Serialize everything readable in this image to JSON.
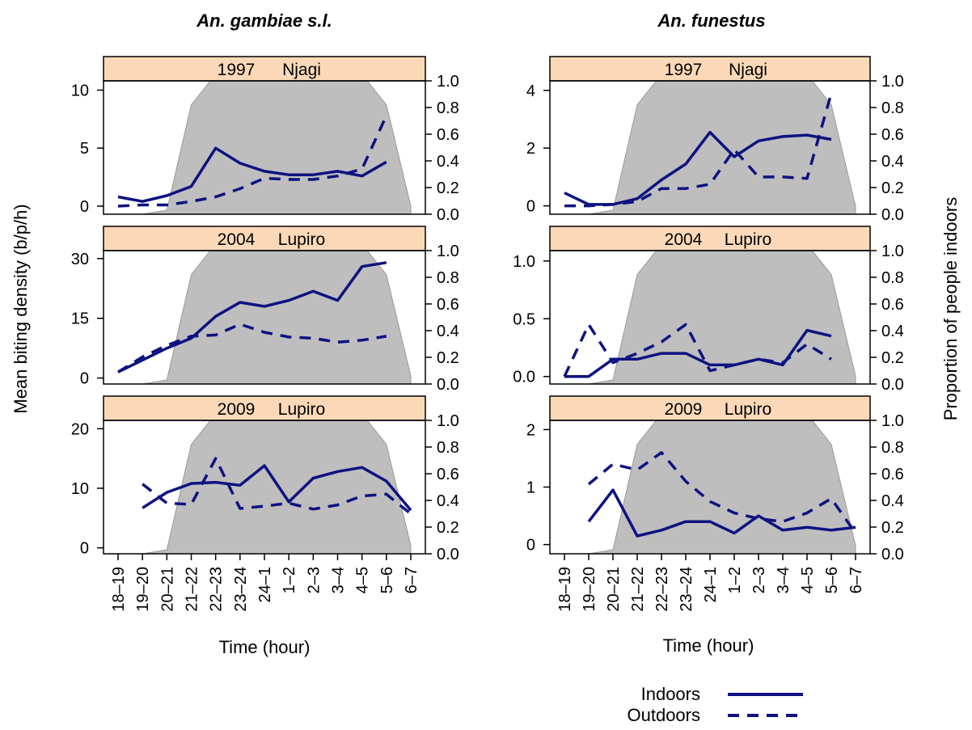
{
  "figure": {
    "left_title": "An. gambiae s.l.",
    "right_title": "An. funestus",
    "ylabel_left": "Mean biting density (b/p/h)",
    "ylabel_right": "Proportion of people indoors",
    "xlabel_left": "Time (hour)",
    "xlabel_right": "Time (hour)",
    "legend": {
      "indoors": "Indoors",
      "outdoors": "Outdoors"
    },
    "colors": {
      "series": "#0d1280",
      "shade": "#bebebe",
      "strip": "#fbd9b8"
    }
  },
  "chart_data": [
    {
      "type": "line",
      "panel": "An. gambiae s.l. 1997 Njagi",
      "strip": [
        "1997",
        "Njagi"
      ],
      "categories": [
        "18–19",
        "19–20",
        "20–21",
        "21–22",
        "22–23",
        "23–24",
        "24–1",
        "1–2",
        "2–3",
        "3–4",
        "4–5",
        "5–6",
        "6–7"
      ],
      "ylim": [
        -0.7,
        10.8
      ],
      "yticks": [
        "0",
        "5",
        "10"
      ],
      "y2ticks": [
        "0.0",
        "0.2",
        "0.4",
        "0.6",
        "0.8",
        "1.0"
      ],
      "y2lim": [
        0,
        1
      ],
      "shade": [
        0,
        0,
        0.03,
        0.82,
        1.05,
        1.1,
        1.1,
        1.1,
        1.1,
        1.1,
        1.05,
        0.82,
        0.06
      ],
      "series": [
        {
          "name": "Indoors",
          "values": [
            0.8,
            0.4,
            0.9,
            1.7,
            5.0,
            3.7,
            3.0,
            2.7,
            2.7,
            3.0,
            2.6,
            3.8,
            null
          ]
        },
        {
          "name": "Outdoors",
          "values": [
            0.0,
            0.1,
            0.1,
            0.4,
            0.8,
            1.5,
            2.4,
            2.3,
            2.3,
            2.6,
            3.2,
            7.8,
            null
          ]
        }
      ]
    },
    {
      "type": "line",
      "panel": "An. gambiae s.l. 2004 Lupiro",
      "strip": [
        "2004",
        "Lupiro"
      ],
      "categories": [
        "18–19",
        "19–20",
        "20–21",
        "21–22",
        "22–23",
        "23–24",
        "24–1",
        "1–2",
        "2–3",
        "3–4",
        "4–5",
        "5–6",
        "6–7"
      ],
      "ylim": [
        -1.5,
        32
      ],
      "yticks": [
        "0",
        "15",
        "30"
      ],
      "y2ticks": [
        "0.0",
        "0.2",
        "0.4",
        "0.6",
        "0.8",
        "1.0"
      ],
      "y2lim": [
        0,
        1
      ],
      "shade": [
        0,
        0,
        0.03,
        0.82,
        1.05,
        1.1,
        1.1,
        1.1,
        1.1,
        1.1,
        1.05,
        0.82,
        0.06
      ],
      "series": [
        {
          "name": "Indoors",
          "values": [
            1.5,
            4.5,
            7.5,
            10.0,
            15.5,
            19.0,
            18.0,
            19.5,
            21.8,
            19.5,
            28.0,
            29.0,
            null
          ]
        },
        {
          "name": "Outdoors",
          "values": [
            1.5,
            5.3,
            8.2,
            10.5,
            10.8,
            13.5,
            11.5,
            10.3,
            10.0,
            9.0,
            9.5,
            10.5,
            null
          ]
        }
      ]
    },
    {
      "type": "line",
      "panel": "An. gambiae s.l. 2009 Lupiro",
      "strip": [
        "2009",
        "Lupiro"
      ],
      "categories": [
        "18–19",
        "19–20",
        "20–21",
        "21–22",
        "22–23",
        "23–24",
        "24–1",
        "1–2",
        "2–3",
        "3–4",
        "4–5",
        "5–6",
        "6–7"
      ],
      "ylim": [
        -1.0,
        21.4
      ],
      "yticks": [
        "0",
        "10",
        "20"
      ],
      "y2ticks": [
        "0.0",
        "0.2",
        "0.4",
        "0.6",
        "0.8",
        "1.0"
      ],
      "y2lim": [
        0,
        1
      ],
      "shade": [
        0,
        0,
        0.03,
        0.82,
        1.05,
        1.1,
        1.1,
        1.1,
        1.1,
        1.1,
        1.05,
        0.82,
        0.06
      ],
      "series": [
        {
          "name": "Indoors",
          "values": [
            null,
            6.7,
            9.3,
            10.8,
            11.0,
            10.5,
            13.8,
            7.7,
            11.7,
            12.8,
            13.5,
            11.2,
            6.3
          ]
        },
        {
          "name": "Outdoors",
          "values": [
            null,
            10.7,
            7.5,
            7.3,
            15.0,
            6.6,
            7.0,
            7.5,
            6.5,
            7.2,
            8.7,
            9.0,
            5.7
          ]
        }
      ]
    },
    {
      "type": "line",
      "panel": "An. funestus 1997 Njagi",
      "strip": [
        "1997",
        "Njagi"
      ],
      "categories": [
        "18–19",
        "19–20",
        "20–21",
        "21–22",
        "22–23",
        "23–24",
        "24–1",
        "1–2",
        "2–3",
        "3–4",
        "4–5",
        "5–6",
        "6–7"
      ],
      "ylim": [
        -0.29,
        4.33
      ],
      "yticks": [
        "0",
        "2",
        "4"
      ],
      "y2ticks": [
        "0.0",
        "0.2",
        "0.4",
        "0.6",
        "0.8",
        "1.0"
      ],
      "y2lim": [
        0,
        1
      ],
      "shade": [
        0,
        0,
        0.03,
        0.82,
        1.05,
        1.1,
        1.1,
        1.1,
        1.1,
        1.1,
        1.05,
        0.82,
        0.06
      ],
      "series": [
        {
          "name": "Indoors",
          "values": [
            0.45,
            0.05,
            0.05,
            0.25,
            0.9,
            1.45,
            2.55,
            1.7,
            2.25,
            2.4,
            2.45,
            2.3,
            null
          ]
        },
        {
          "name": "Outdoors",
          "values": [
            0.0,
            0.0,
            0.05,
            0.15,
            0.6,
            0.6,
            0.75,
            1.95,
            1.0,
            1.0,
            0.95,
            3.9,
            null
          ]
        }
      ]
    },
    {
      "type": "line",
      "panel": "An. funestus 2004 Lupiro",
      "strip": [
        "2004",
        "Lupiro"
      ],
      "categories": [
        "18–19",
        "19–20",
        "20–21",
        "21–22",
        "22–23",
        "23–24",
        "24–1",
        "1–2",
        "2–3",
        "3–4",
        "4–5",
        "5–6",
        "6–7"
      ],
      "ylim": [
        -0.065,
        1.09
      ],
      "yticks": [
        "0.0",
        "0.5",
        "1.0"
      ],
      "y2ticks": [
        "0.0",
        "0.2",
        "0.4",
        "0.6",
        "0.8",
        "1.0"
      ],
      "y2lim": [
        0,
        1
      ],
      "shade": [
        0,
        0,
        0.03,
        0.82,
        1.05,
        1.1,
        1.1,
        1.1,
        1.1,
        1.1,
        1.05,
        0.82,
        0.06
      ],
      "series": [
        {
          "name": "Indoors",
          "values": [
            0.0,
            0.0,
            0.15,
            0.15,
            0.2,
            0.2,
            0.1,
            0.1,
            0.15,
            0.1,
            0.4,
            0.35,
            null
          ]
        },
        {
          "name": "Outdoors",
          "values": [
            0.0,
            0.45,
            0.12,
            0.2,
            0.3,
            0.45,
            0.05,
            0.1,
            0.15,
            0.12,
            0.28,
            0.15,
            null
          ]
        }
      ]
    },
    {
      "type": "line",
      "panel": "An. funestus 2009 Lupiro",
      "strip": [
        "2009",
        "Lupiro"
      ],
      "categories": [
        "18–19",
        "19–20",
        "20–21",
        "21–22",
        "22–23",
        "23–24",
        "24–1",
        "1–2",
        "2–3",
        "3–4",
        "4–5",
        "5–6",
        "6–7"
      ],
      "ylim": [
        -0.16,
        2.16
      ],
      "yticks": [
        "0",
        "1",
        "2"
      ],
      "y2ticks": [
        "0.0",
        "0.2",
        "0.4",
        "0.6",
        "0.8",
        "1.0"
      ],
      "y2lim": [
        0,
        1
      ],
      "shade": [
        0,
        0,
        0.03,
        0.82,
        1.05,
        1.1,
        1.1,
        1.1,
        1.1,
        1.1,
        1.05,
        0.82,
        0.06
      ],
      "series": [
        {
          "name": "Indoors",
          "values": [
            null,
            0.4,
            0.95,
            0.15,
            0.25,
            0.4,
            0.4,
            0.2,
            0.5,
            0.25,
            0.3,
            0.25,
            0.3
          ]
        },
        {
          "name": "Outdoors",
          "values": [
            null,
            1.05,
            1.4,
            1.3,
            1.6,
            1.1,
            0.75,
            0.55,
            0.45,
            0.4,
            0.55,
            0.8,
            0.2
          ]
        }
      ]
    }
  ]
}
